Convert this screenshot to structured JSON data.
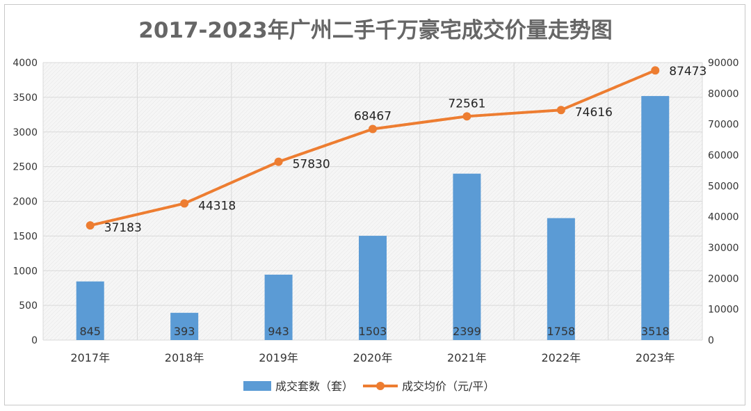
{
  "chart_data": {
    "type": "bar",
    "title": "2017-2023年广州二手千万豪宅成交价量走势图",
    "categories": [
      "2017年",
      "2018年",
      "2019年",
      "2020年",
      "2021年",
      "2022年",
      "2023年"
    ],
    "series": [
      {
        "name": "成交套数（套）",
        "type": "bar",
        "axis": "left",
        "color": "#5b9bd5",
        "values": [
          845,
          393,
          943,
          1503,
          2399,
          1758,
          3518
        ]
      },
      {
        "name": "成交均价（元/平）",
        "type": "line",
        "axis": "right",
        "color": "#ed7d31",
        "values": [
          37183,
          44318,
          57830,
          68467,
          72561,
          74616,
          87473
        ]
      }
    ],
    "y_left": {
      "min": 0,
      "max": 4000,
      "step": 500,
      "ticks": [
        "0",
        "500",
        "1000",
        "1500",
        "2000",
        "2500",
        "3000",
        "3500",
        "4000"
      ]
    },
    "y_right": {
      "min": 0,
      "max": 90000,
      "step": 10000,
      "ticks": [
        "0",
        "10000",
        "20000",
        "30000",
        "40000",
        "50000",
        "60000",
        "70000",
        "80000",
        "90000"
      ]
    },
    "grid": true,
    "legend": "bottom"
  }
}
